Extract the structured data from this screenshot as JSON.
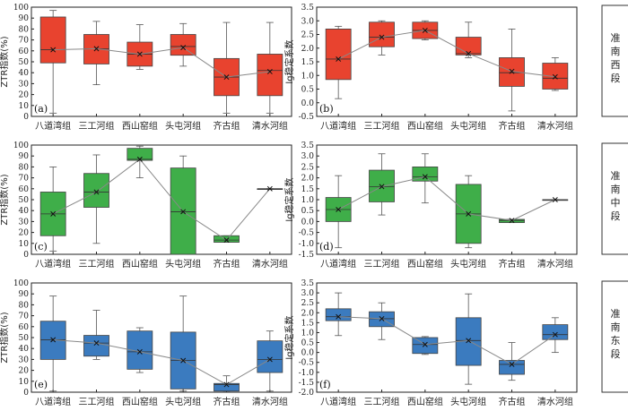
{
  "categories": [
    "八道湾组",
    "三工河组",
    "西山窑组",
    "头屯河组",
    "齐古组",
    "清水河组"
  ],
  "row_labels": [
    "准南西段",
    "准南中段",
    "准南东段"
  ],
  "colors": {
    "west": "#e8432f",
    "middle": "#3fae49",
    "east": "#3b7bbf",
    "line": "#888888",
    "axis": "#222222"
  },
  "chart_data": [
    {
      "type": "box",
      "panel": "(a)",
      "region": "准南西段",
      "color_key": "west",
      "ylabel": "ZTR指数(%)",
      "ylim": [
        0,
        100
      ],
      "yticks": [
        0,
        10,
        20,
        30,
        40,
        50,
        60,
        70,
        80,
        90,
        100
      ],
      "boxes": [
        {
          "min": 3,
          "q1": 49,
          "median": 61,
          "q3": 91,
          "max": 97,
          "mean": 61
        },
        {
          "min": 29,
          "q1": 48,
          "median": 62,
          "q3": 75,
          "max": 87,
          "mean": 62
        },
        {
          "min": 43,
          "q1": 46,
          "median": 57,
          "q3": 68,
          "max": 84,
          "mean": 57
        },
        {
          "min": 46,
          "q1": 56,
          "median": 64,
          "q3": 75,
          "max": 85,
          "mean": 63
        },
        {
          "min": 3,
          "q1": 19,
          "median": 36,
          "q3": 53,
          "max": 86,
          "mean": 36
        },
        {
          "min": 3,
          "q1": 19,
          "median": 42,
          "q3": 57,
          "max": 86,
          "mean": 41
        }
      ]
    },
    {
      "type": "box",
      "panel": "(b)",
      "region": "准南西段",
      "color_key": "west",
      "ylabel": "lg稳定系数",
      "ylim": [
        -0.5,
        3.5
      ],
      "yticks": [
        -0.5,
        0.0,
        0.5,
        1.0,
        1.5,
        2.0,
        2.5,
        3.0,
        3.5
      ],
      "boxes": [
        {
          "min": 0.15,
          "q1": 0.85,
          "median": 1.6,
          "q3": 2.7,
          "max": 2.8,
          "mean": 1.6
        },
        {
          "min": 1.75,
          "q1": 2.05,
          "median": 2.4,
          "q3": 2.95,
          "max": 3.0,
          "mean": 2.4
        },
        {
          "min": 2.3,
          "q1": 2.35,
          "median": 2.65,
          "q3": 2.95,
          "max": 3.0,
          "mean": 2.65
        },
        {
          "min": 1.65,
          "q1": 1.75,
          "median": 1.8,
          "q3": 2.4,
          "max": 2.95,
          "mean": 1.8
        },
        {
          "min": -0.3,
          "q1": 0.6,
          "median": 1.1,
          "q3": 1.65,
          "max": 2.7,
          "mean": 1.15
        },
        {
          "min": 0.45,
          "q1": 0.5,
          "median": 0.9,
          "q3": 1.45,
          "max": 1.65,
          "mean": 0.95
        }
      ]
    },
    {
      "type": "box",
      "panel": "(c)",
      "region": "准南中段",
      "color_key": "middle",
      "ylabel": "ZTR指数(%)",
      "ylim": [
        0,
        100
      ],
      "yticks": [
        0,
        10,
        20,
        30,
        40,
        50,
        60,
        70,
        80,
        90,
        100
      ],
      "boxes": [
        {
          "min": 3,
          "q1": 17,
          "median": 37,
          "q3": 57,
          "max": 80,
          "mean": 37
        },
        {
          "min": 10,
          "q1": 43,
          "median": 57,
          "q3": 74,
          "max": 91,
          "mean": 57
        },
        {
          "min": 70,
          "q1": 86,
          "median": 87,
          "q3": 97,
          "max": 99,
          "mean": 87
        },
        {
          "min": 0,
          "q1": 0,
          "median": 39,
          "q3": 79,
          "max": 90,
          "mean": 39
        },
        {
          "min": 11,
          "q1": 11,
          "median": 13,
          "q3": 17,
          "max": 17,
          "mean": 13
        },
        {
          "min": 60,
          "q1": 60,
          "median": 60,
          "q3": 60,
          "max": 60,
          "mean": 60
        }
      ]
    },
    {
      "type": "box",
      "panel": "(d)",
      "region": "准南中段",
      "color_key": "middle",
      "ylabel": "lg稳定系数",
      "ylim": [
        -1.5,
        3.5
      ],
      "yticks": [
        -1.5,
        -1.0,
        -0.5,
        0.0,
        0.5,
        1.0,
        1.5,
        2.0,
        2.5,
        3.0,
        3.5
      ],
      "boxes": [
        {
          "min": -1.2,
          "q1": 0.0,
          "median": 0.55,
          "q3": 1.1,
          "max": 2.1,
          "mean": 0.55
        },
        {
          "min": 0.3,
          "q1": 0.9,
          "median": 1.6,
          "q3": 2.35,
          "max": 3.1,
          "mean": 1.6
        },
        {
          "min": 0.85,
          "q1": 1.85,
          "median": 2.05,
          "q3": 2.5,
          "max": 3.1,
          "mean": 2.05
        },
        {
          "min": -1.2,
          "q1": -1.0,
          "median": 0.35,
          "q3": 1.7,
          "max": 2.1,
          "mean": 0.35
        },
        {
          "min": -0.05,
          "q1": -0.05,
          "median": 0.05,
          "q3": 0.1,
          "max": 0.1,
          "mean": 0.05
        },
        {
          "min": 1.0,
          "q1": 1.0,
          "median": 1.0,
          "q3": 1.0,
          "max": 1.0,
          "mean": 1.0
        }
      ]
    },
    {
      "type": "box",
      "panel": "(e)",
      "region": "准南东段",
      "color_key": "east",
      "ylabel": "ZTR指数(%)",
      "ylim": [
        0,
        100
      ],
      "yticks": [
        0,
        10,
        20,
        30,
        40,
        50,
        60,
        70,
        80,
        90,
        100
      ],
      "boxes": [
        {
          "min": 1,
          "q1": 30,
          "median": 48,
          "q3": 65,
          "max": 88,
          "mean": 48
        },
        {
          "min": 30,
          "q1": 33,
          "median": 45,
          "q3": 52,
          "max": 75,
          "mean": 45
        },
        {
          "min": 18,
          "q1": 21,
          "median": 37,
          "q3": 56,
          "max": 59,
          "mean": 37
        },
        {
          "min": 1,
          "q1": 3,
          "median": 29,
          "q3": 55,
          "max": 88,
          "mean": 29
        },
        {
          "min": 1,
          "q1": 1,
          "median": 7,
          "q3": 8,
          "max": 15,
          "mean": 7
        },
        {
          "min": 1,
          "q1": 18,
          "median": 30,
          "q3": 47,
          "max": 56,
          "mean": 30
        }
      ]
    },
    {
      "type": "box",
      "panel": "(f)",
      "region": "准南东段",
      "color_key": "east",
      "ylabel": "lg稳定系数",
      "ylim": [
        -2.0,
        3.5
      ],
      "yticks": [
        -2.0,
        -1.5,
        -1.0,
        -0.5,
        0.0,
        0.5,
        1.0,
        1.5,
        2.0,
        2.5,
        3.0,
        3.5
      ],
      "boxes": [
        {
          "min": 0.85,
          "q1": 1.6,
          "median": 1.8,
          "q3": 2.2,
          "max": 3.0,
          "mean": 1.8
        },
        {
          "min": 0.65,
          "q1": 1.3,
          "median": 1.7,
          "q3": 2.05,
          "max": 2.5,
          "mean": 1.7
        },
        {
          "min": -0.1,
          "q1": -0.05,
          "median": 0.4,
          "q3": 0.75,
          "max": 0.8,
          "mean": 0.4
        },
        {
          "min": -1.6,
          "q1": -0.65,
          "median": 0.6,
          "q3": 1.75,
          "max": 2.95,
          "mean": 0.6
        },
        {
          "min": -1.4,
          "q1": -1.1,
          "median": -0.6,
          "q3": -0.4,
          "max": 0.5,
          "mean": -0.6
        },
        {
          "min": 0.0,
          "q1": 0.65,
          "median": 0.9,
          "q3": 1.4,
          "max": 1.75,
          "mean": 0.9
        }
      ]
    }
  ]
}
